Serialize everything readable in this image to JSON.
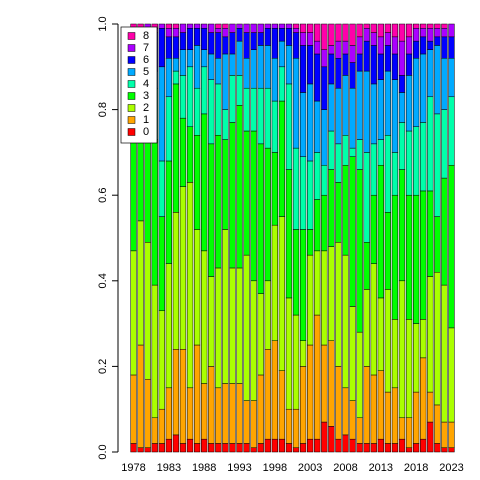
{
  "chart_data": {
    "type": "stacked-bar",
    "categories": [
      1978,
      null,
      null,
      null,
      null,
      1983,
      null,
      null,
      null,
      null,
      1988,
      null,
      null,
      null,
      null,
      1993,
      null,
      null,
      null,
      null,
      1998,
      null,
      null,
      null,
      null,
      2003,
      null,
      null,
      null,
      null,
      2008,
      null,
      null,
      null,
      null,
      2013,
      null,
      null,
      null,
      null,
      2018,
      null,
      null,
      null,
      null,
      2023
    ],
    "ylim": [
      0,
      1
    ],
    "yticks": [
      {
        "value": 0,
        "label": "0.0"
      },
      0.2,
      0.4,
      0.6,
      0.8,
      {
        "value": 1,
        "label": "1.0"
      }
    ],
    "legend": "top-left",
    "series": [
      {
        "name": "0",
        "color": "#FF0000",
        "values": [
          0.02,
          0.01,
          0.01,
          0.02,
          0.02,
          0.03,
          0.04,
          0.02,
          0.03,
          0.02,
          0.03,
          0.02,
          0.02,
          0.02,
          0.02,
          0.02,
          0.02,
          0.01,
          0.02,
          0.03,
          0.03,
          0.03,
          0.02,
          0.01,
          0.02,
          0.03,
          0.03,
          0.07,
          0.06,
          0.03,
          0.04,
          0.03,
          0.02,
          0.02,
          0.02,
          0.03,
          0.02,
          0.02,
          0.03,
          0.01,
          0.02,
          0.03,
          0.07,
          0.02,
          0.01,
          0.01
        ]
      },
      {
        "name": "1",
        "color": "#FFA500",
        "values": [
          0.16,
          0.24,
          0.16,
          0.06,
          0.08,
          0.12,
          0.2,
          0.22,
          0.12,
          0.23,
          0.13,
          0.18,
          0.13,
          0.14,
          0.14,
          0.14,
          0.1,
          0.11,
          0.16,
          0.21,
          0.23,
          0.16,
          0.08,
          0.09,
          0.18,
          0.22,
          0.29,
          0.18,
          0.2,
          0.17,
          0.11,
          0.09,
          0.06,
          0.18,
          0.16,
          0.16,
          0.12,
          0.13,
          0.05,
          0.07,
          0.12,
          0.19,
          0.07,
          0.09,
          0.06,
          0.06
        ]
      },
      {
        "name": "2",
        "color": "#AAFF00",
        "values": [
          0.29,
          0.29,
          0.32,
          0.31,
          0.23,
          0.29,
          0.32,
          0.38,
          0.48,
          0.27,
          0.31,
          0.21,
          0.28,
          0.36,
          0.27,
          0.27,
          0.34,
          0.28,
          0.19,
          0.16,
          0.27,
          0.36,
          0.26,
          0.22,
          0.06,
          0.21,
          0.15,
          0.22,
          0.22,
          0.29,
          0.31,
          0.22,
          0.2,
          0.18,
          0.26,
          0.17,
          0.24,
          0.16,
          0.32,
          0.23,
          0.16,
          0.09,
          0.27,
          0.31,
          0.32,
          0.22
        ]
      },
      {
        "name": "3",
        "color": "#00FF00",
        "values": [
          0.27,
          0.19,
          0.3,
          0.34,
          0.22,
          0.24,
          0.3,
          0.16,
          0.13,
          0.22,
          0.32,
          0.31,
          0.31,
          0.21,
          0.34,
          0.38,
          0.29,
          0.35,
          0.35,
          0.31,
          0.17,
          0.27,
          0.3,
          0.2,
          0.26,
          0.06,
          0.12,
          0.13,
          0.18,
          0.14,
          0.21,
          0.35,
          0.38,
          0.11,
          0.16,
          0.31,
          0.18,
          0.29,
          0.26,
          0.29,
          0.3,
          0.3,
          0.2,
          0.13,
          0.25,
          0.38
        ]
      },
      {
        "name": "4",
        "color": "#00FFAA",
        "values": [
          0.06,
          0.03,
          0.06,
          0.12,
          0.13,
          0.15,
          0.03,
          0.1,
          0.14,
          0.11,
          0.11,
          0.15,
          0.12,
          0.07,
          0.11,
          0.07,
          0.1,
          0.1,
          0.13,
          0.14,
          0.12,
          0.08,
          0.2,
          0.19,
          0.17,
          0.16,
          0.11,
          0.07,
          0.09,
          0.09,
          0.07,
          0.02,
          0.07,
          0.21,
          0.12,
          0.06,
          0.18,
          0.1,
          0.11,
          0.15,
          0.16,
          0.16,
          0.22,
          0.24,
          0.16,
          0.16
        ]
      },
      {
        "name": "5",
        "color": "#00AAFF",
        "values": [
          0.03,
          0.1,
          0.08,
          0.04,
          0.22,
          0.09,
          0.03,
          0.06,
          0.04,
          0.1,
          0.04,
          0.06,
          0.06,
          0.13,
          0.05,
          0.08,
          0.07,
          0.09,
          0.1,
          0.1,
          0.1,
          0.06,
          0.09,
          0.21,
          0.15,
          0.18,
          0.12,
          0.13,
          0.11,
          0.13,
          0.14,
          0.14,
          0.16,
          0.19,
          0.14,
          0.14,
          0.15,
          0.17,
          0.07,
          0.13,
          0.16,
          0.16,
          0.11,
          0.16,
          0.12,
          0.09
        ]
      },
      {
        "name": "6",
        "color": "#0000FF",
        "values": [
          0.14,
          0.11,
          0.05,
          0.09,
          0.09,
          0.05,
          0.05,
          0.04,
          0.05,
          0.04,
          0.05,
          0.05,
          0.06,
          0.04,
          0.05,
          0.03,
          0.06,
          0.04,
          0.03,
          0.04,
          0.07,
          0.03,
          0.04,
          0.06,
          0.11,
          0.09,
          0.11,
          0.1,
          0.07,
          0.07,
          0.05,
          0.06,
          0.04,
          0.07,
          0.09,
          0.06,
          0.06,
          0.06,
          0.04,
          0.05,
          0.04,
          0.04,
          0.02,
          0.02,
          0.05,
          0.05
        ]
      },
      {
        "name": "7",
        "color": "#AA00FF",
        "values": [
          0.02,
          0.02,
          0.02,
          0.01,
          0.01,
          0.02,
          0.02,
          0.02,
          0.01,
          0.01,
          0.01,
          0.02,
          0.01,
          0.02,
          0.02,
          0.01,
          0.02,
          0.02,
          0.02,
          0.01,
          0.01,
          0.01,
          0.01,
          0.01,
          0.03,
          0.03,
          0.03,
          0.04,
          0.02,
          0.04,
          0.03,
          0.04,
          0.04,
          0.03,
          0.03,
          0.04,
          0.03,
          0.04,
          0.08,
          0.04,
          0.03,
          0.02,
          0.03,
          0.02,
          0.02,
          0.03
        ]
      },
      {
        "name": "8",
        "color": "#FF00AA",
        "values": [
          0.01,
          0.01,
          0,
          0.01,
          0,
          0.01,
          0.01,
          0,
          0,
          0,
          0,
          0,
          0.01,
          0.01,
          0,
          0,
          0,
          0,
          0,
          0,
          0,
          0,
          0,
          0.01,
          0.02,
          0.02,
          0.04,
          0.06,
          0.05,
          0.04,
          0.04,
          0.05,
          0.03,
          0.01,
          0.02,
          0.03,
          0.02,
          0.03,
          0.04,
          0.03,
          0.01,
          0.01,
          0.01,
          0.01,
          0.01,
          0
        ]
      }
    ]
  }
}
